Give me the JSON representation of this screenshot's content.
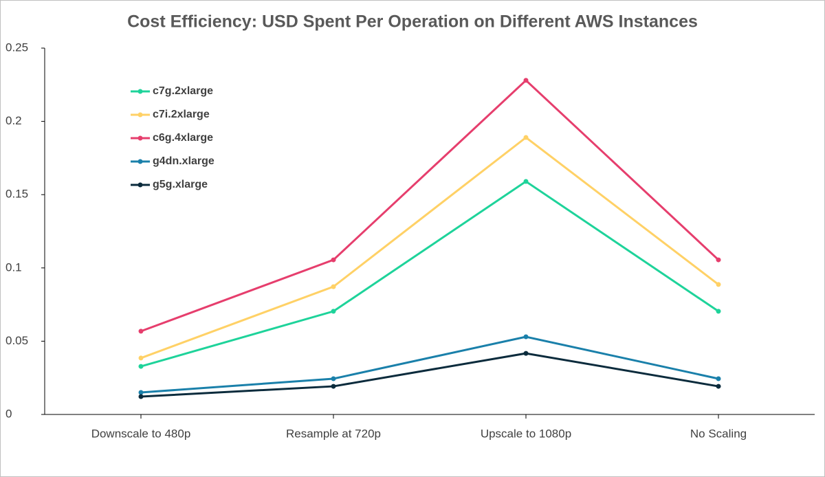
{
  "chart_data": {
    "type": "line",
    "title": "Cost Efficiency: USD Spent Per Operation on Different AWS Instances",
    "categories": [
      "Downscale to 480p",
      "Resample at 720p",
      "Upscale to 1080p",
      "No Scaling"
    ],
    "series": [
      {
        "name": "c7g.2xlarge",
        "color": "#1ed39a",
        "values": [
          0.0328,
          0.0704,
          0.159,
          0.0704
        ]
      },
      {
        "name": "c7i.2xlarge",
        "color": "#ffd166",
        "values": [
          0.0385,
          0.0872,
          0.189,
          0.0887
        ]
      },
      {
        "name": "c6g.4xlarge",
        "color": "#e63e6d",
        "values": [
          0.0568,
          0.1055,
          0.228,
          0.1055
        ]
      },
      {
        "name": "g4dn.xlarge",
        "color": "#1a80aa",
        "values": [
          0.015,
          0.0244,
          0.053,
          0.0244
        ]
      },
      {
        "name": "g5g.xlarge",
        "color": "#0b2b3c",
        "values": [
          0.0122,
          0.0192,
          0.0417,
          0.0192
        ]
      }
    ],
    "ylim": [
      0,
      0.25
    ],
    "yticks": [
      0,
      0.05,
      0.1,
      0.15,
      0.2,
      0.25
    ],
    "grid": false,
    "legend": "upper left"
  }
}
